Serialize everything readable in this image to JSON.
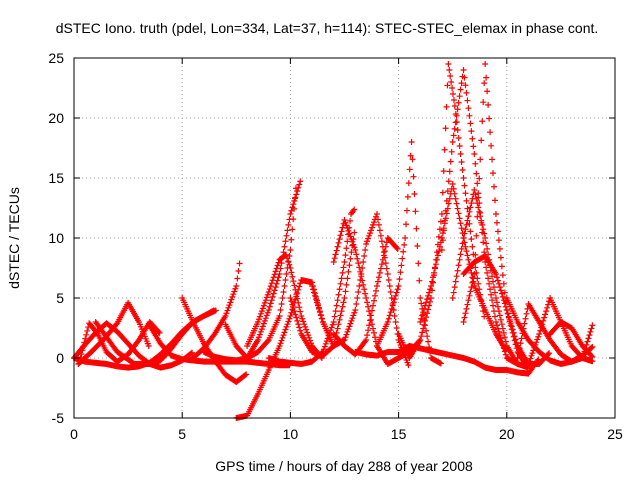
{
  "chart_data": {
    "type": "scatter",
    "title": "dSTEC Iono. truth (pdel, Lon=334, Lat=37, h=114): STEC-STEC_elemax in phase cont.",
    "xlabel": "GPS time / hours of day 288 of year 2008",
    "ylabel": "dSTEC  / TECUs",
    "xlim": [
      0,
      25
    ],
    "ylim": [
      -5,
      25
    ],
    "xticks": [
      0,
      5,
      10,
      15,
      20,
      25
    ],
    "yticks": [
      -5,
      0,
      5,
      10,
      15,
      20,
      25
    ],
    "grid": true,
    "legend": "none",
    "marker": "plus",
    "color": "#ff0000",
    "series": [
      {
        "x": [
          0.0,
          0.5,
          1.0,
          1.5,
          2.0,
          2.5,
          3.0,
          3.5,
          4.0,
          4.5,
          5.0,
          5.5,
          6.0,
          6.5
        ],
        "y": [
          0.0,
          -0.3,
          -0.4,
          -0.5,
          -0.7,
          -0.8,
          -0.7,
          -0.4,
          0.3,
          1.2,
          2.2,
          3.0,
          3.5,
          4.0
        ]
      },
      {
        "x": [
          0.0,
          0.5,
          1.0,
          1.5,
          2.0,
          2.5,
          3.0,
          3.5,
          4.0,
          4.5,
          5.0,
          5.5
        ],
        "y": [
          0.0,
          1.1,
          2.1,
          2.9,
          2.2,
          1.2,
          0.2,
          -0.5,
          -0.8,
          -0.6,
          -0.2,
          0.5
        ]
      },
      {
        "x": [
          0.2,
          0.8,
          1.4,
          2.0,
          2.5,
          3.0,
          3.5
        ],
        "y": [
          -0.5,
          0.5,
          1.6,
          2.9,
          4.6,
          3.0,
          0.8
        ]
      },
      {
        "x": [
          0.3,
          0.7,
          1.1,
          1.5,
          2.0,
          2.5,
          3.0,
          3.5,
          4.0
        ],
        "y": [
          0.0,
          2.9,
          2.0,
          0.5,
          -0.3,
          0.3,
          1.5,
          3.0,
          2.0
        ]
      },
      {
        "x": [
          1.0,
          2.0,
          2.8,
          3.5,
          4.0,
          4.5,
          5.0,
          5.5,
          6.0,
          6.6
        ],
        "y": [
          3.0,
          0.5,
          -0.5,
          -0.5,
          -0.2,
          0.8,
          2.0,
          3.0,
          3.5,
          4.0
        ]
      },
      {
        "x": [
          3.5,
          4.0,
          4.5,
          5.0,
          5.5,
          6.0,
          6.5,
          7.0,
          7.5,
          8.0,
          8.5,
          9.0,
          9.5,
          10.0
        ],
        "y": [
          2.7,
          1.2,
          0.2,
          -0.1,
          -0.2,
          -0.3,
          -0.3,
          -0.3,
          -0.3,
          -0.3,
          -0.4,
          -0.5,
          -0.6,
          -0.6
        ]
      },
      {
        "x": [
          5.0,
          5.5,
          6.0,
          6.5,
          7.0,
          7.5,
          8.0
        ],
        "y": [
          5.0,
          3.0,
          1.2,
          -0.2,
          -1.4,
          -2.0,
          -1.3
        ]
      },
      {
        "x": [
          5.5,
          6.0,
          6.5,
          7.0,
          7.5,
          7.7
        ],
        "y": [
          0.0,
          0.8,
          2.0,
          3.5,
          6.0,
          8.5
        ]
      },
      {
        "x": [
          6.0,
          6.5,
          7.0,
          7.5,
          8.0,
          8.5,
          9.0,
          9.5,
          10.0,
          10.3
        ],
        "y": [
          0.5,
          0.1,
          -0.1,
          -0.2,
          0.0,
          0.5,
          1.5,
          3.5,
          9.0,
          15.0
        ]
      },
      {
        "x": [
          7.0,
          7.5,
          8.0,
          8.5,
          9.0,
          9.5,
          10.0,
          10.5
        ],
        "y": [
          2.8,
          1.0,
          0.0,
          1.5,
          4.0,
          7.0,
          12.0,
          15.0
        ]
      },
      {
        "x": [
          7.5,
          8.0,
          8.5,
          9.0,
          9.5,
          10.0,
          10.5,
          11.0,
          11.5,
          12.0
        ],
        "y": [
          -5.0,
          -4.8,
          -3.0,
          -1.0,
          1.0,
          3.5,
          6.5,
          6.3,
          3.0,
          1.0
        ]
      },
      {
        "x": [
          8.0,
          8.5,
          9.0,
          9.5,
          9.8,
          10.0,
          10.5,
          11.0,
          11.5
        ],
        "y": [
          1.0,
          3.0,
          5.5,
          8.2,
          8.6,
          7.5,
          3.5,
          1.0,
          -0.1
        ]
      },
      {
        "x": [
          9.0,
          9.5,
          10.0,
          10.5,
          11.0,
          11.5,
          12.0,
          12.5,
          12.8,
          13.0
        ],
        "y": [
          0.0,
          -0.3,
          -0.4,
          -0.5,
          -0.3,
          0.5,
          3.0,
          8.0,
          12.0,
          12.5
        ]
      },
      {
        "x": [
          10.0,
          10.5,
          11.0,
          11.5,
          12.0,
          12.5,
          13.0
        ],
        "y": [
          5.0,
          2.0,
          0.5,
          0.2,
          1.0,
          5.0,
          11.0
        ]
      },
      {
        "x": [
          11.0,
          11.5,
          12.0,
          12.5,
          13.0,
          13.5,
          14.0,
          14.5,
          15.0,
          15.5
        ],
        "y": [
          6.0,
          3.0,
          1.0,
          1.5,
          4.0,
          9.5,
          12.0,
          7.0,
          1.5,
          -0.8
        ]
      },
      {
        "x": [
          12.0,
          12.5,
          13.0,
          13.5,
          14.0,
          14.5,
          15.0,
          15.5,
          16.0
        ],
        "y": [
          8.0,
          11.5,
          9.0,
          5.0,
          1.0,
          -0.5,
          0.0,
          0.5,
          1.5
        ]
      },
      {
        "x": [
          12.0,
          12.5,
          13.0,
          13.5,
          14.0,
          14.5,
          15.0
        ],
        "y": [
          2.0,
          1.0,
          0.3,
          1.5,
          6.0,
          10.0,
          9.0
        ]
      },
      {
        "x": [
          13.0,
          13.5,
          14.0,
          14.5,
          15.0,
          15.5,
          16.0,
          16.5,
          17.0,
          17.5,
          18.0,
          18.5,
          19.0
        ],
        "y": [
          0.5,
          0.3,
          0.2,
          0.5,
          0.5,
          1.0,
          0.8,
          0.6,
          0.4,
          0.2,
          0.0,
          -0.3,
          -0.8
        ]
      },
      {
        "x": [
          14.0,
          14.5,
          15.0,
          15.3,
          15.6,
          16.0,
          16.5,
          17.0
        ],
        "y": [
          1.0,
          3.0,
          6.0,
          10.0,
          18.0,
          5.0,
          0.0,
          -0.5
        ]
      },
      {
        "x": [
          15.0,
          15.5,
          16.0,
          16.5,
          17.0,
          17.3,
          17.6,
          18.0,
          18.5,
          19.0
        ],
        "y": [
          2.0,
          0.0,
          1.5,
          5.0,
          12.0,
          24.5,
          21.0,
          15.0,
          8.0,
          3.0
        ]
      },
      {
        "x": [
          16.0,
          16.5,
          17.0,
          17.5,
          18.0,
          18.5,
          19.0,
          19.5,
          20.0
        ],
        "y": [
          3.0,
          6.0,
          10.0,
          14.5,
          10.0,
          6.0,
          4.0,
          2.0,
          0.5
        ]
      },
      {
        "x": [
          17.5,
          18.0,
          18.5,
          19.0,
          19.5,
          20.0,
          20.5
        ],
        "y": [
          5.0,
          10.0,
          14.0,
          10.0,
          5.0,
          1.0,
          -0.5
        ]
      },
      {
        "x": [
          17.0,
          17.5,
          18.0,
          18.5,
          19.0,
          19.5,
          20.0,
          20.5,
          21.0
        ],
        "y": [
          9.0,
          18.0,
          24.0,
          17.0,
          8.0,
          3.0,
          0.0,
          -0.5,
          -0.8
        ]
      },
      {
        "x": [
          18.0,
          18.5,
          19.0,
          19.5,
          20.0,
          20.5,
          21.0
        ],
        "y": [
          3.0,
          7.0,
          24.5,
          12.0,
          4.0,
          0.5,
          -1.0
        ]
      },
      {
        "x": [
          18.0,
          18.5,
          19.0,
          19.5,
          20.0,
          20.5,
          21.0,
          21.5,
          22.0
        ],
        "y": [
          7.0,
          8.0,
          8.5,
          7.0,
          4.0,
          1.0,
          -0.5,
          -0.5,
          0.5
        ]
      },
      {
        "x": [
          19.0,
          19.5,
          20.0,
          20.5,
          21.0,
          21.5
        ],
        "y": [
          -0.8,
          -1.0,
          -1.0,
          -1.2,
          -1.3,
          0.0
        ]
      },
      {
        "x": [
          20.0,
          20.5,
          21.0,
          21.5,
          22.0,
          22.5,
          23.0,
          23.5,
          24.0
        ],
        "y": [
          5.0,
          3.0,
          1.5,
          0.5,
          -0.2,
          -0.5,
          -0.3,
          0.2,
          1.0
        ]
      },
      {
        "x": [
          20.5,
          21.0,
          21.5,
          22.0,
          22.5,
          23.0,
          23.5,
          24.0
        ],
        "y": [
          0.0,
          4.5,
          3.0,
          1.5,
          0.3,
          -0.3,
          0.0,
          3.0
        ]
      },
      {
        "x": [
          21.0,
          21.5,
          22.0,
          22.5,
          23.0,
          23.5,
          24.0
        ],
        "y": [
          -0.5,
          2.0,
          5.0,
          3.0,
          1.0,
          0.0,
          -0.3
        ]
      },
      {
        "x": [
          22.0,
          22.5,
          23.0,
          23.5,
          24.0
        ],
        "y": [
          2.0,
          3.0,
          2.5,
          1.0,
          0.0
        ]
      }
    ]
  }
}
